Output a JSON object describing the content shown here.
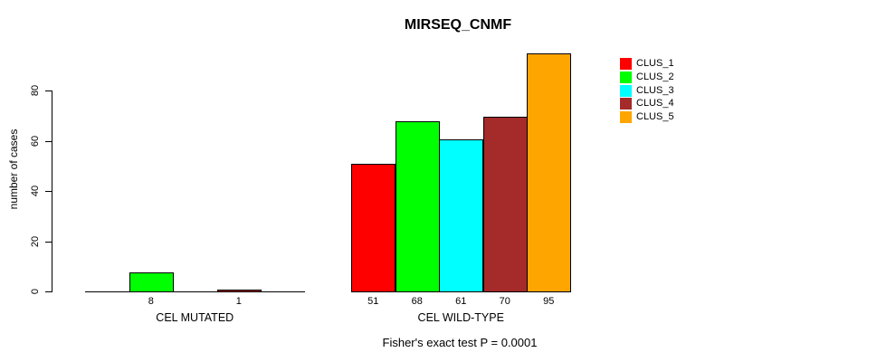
{
  "title": "MIRSEQ_CNMF",
  "footer": "Fisher's exact test P = 0.0001",
  "chart_data": {
    "type": "bar",
    "title": "MIRSEQ_CNMF",
    "xlabel": "Fisher's exact test P = 0.0001",
    "ylabel": "number of cases",
    "yticks": [
      0,
      20,
      40,
      60,
      80
    ],
    "ylim": [
      0,
      95
    ],
    "grid": false,
    "legend": {
      "position": "right",
      "entries": [
        {
          "label": "CLUS_1",
          "color": "#FF0000"
        },
        {
          "label": "CLUS_2",
          "color": "#00FF00"
        },
        {
          "label": "CLUS_3",
          "color": "#00FFFF"
        },
        {
          "label": "CLUS_4",
          "color": "#A52A2A"
        },
        {
          "label": "CLUS_5",
          "color": "#FFA500"
        }
      ]
    },
    "series_names": [
      "CLUS_1",
      "CLUS_2",
      "CLUS_3",
      "CLUS_4",
      "CLUS_5"
    ],
    "groups": [
      {
        "label": "CEL MUTATED",
        "values": [
          0,
          8,
          0,
          1,
          0
        ],
        "bar_labels": [
          "",
          "8",
          "",
          "1",
          ""
        ]
      },
      {
        "label": "CEL WILD-TYPE",
        "values": [
          51,
          68,
          61,
          70,
          95
        ],
        "bar_labels": [
          "51",
          "68",
          "61",
          "70",
          "95"
        ]
      }
    ],
    "colors": {
      "bar_border": "#000000",
      "axis": "#000000",
      "background": "#FFFFFF"
    }
  }
}
